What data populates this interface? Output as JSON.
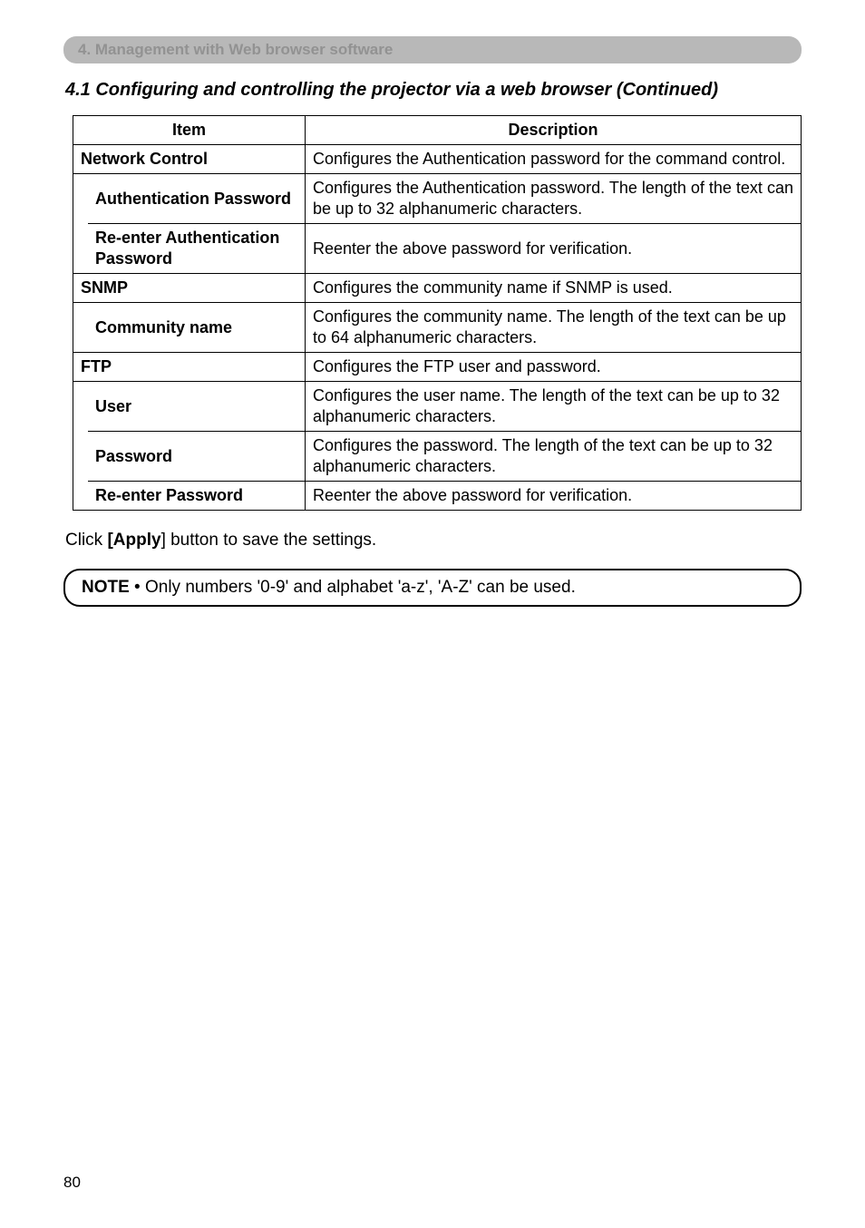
{
  "section_bar": "4. Management with Web browser software",
  "heading": "4.1 Configuring and controlling the projector via a web browser (Continued)",
  "table": {
    "header_item": "Item",
    "header_desc": "Description",
    "groups": [
      {
        "name": "Network Control",
        "desc": "Configures the Authentication password for the command control.",
        "subs": [
          {
            "name": "Authentication Password",
            "desc": "Configures the Authentication password. The length of the text can be up to 32 alphanumeric characters."
          },
          {
            "name": "Re-enter Authentication Password",
            "desc": "Reenter the above password for verification."
          }
        ]
      },
      {
        "name": "SNMP",
        "desc": "Configures the community name if SNMP is used.",
        "subs": [
          {
            "name": "Community name",
            "desc": "Configures the community name. The length of the text can be up to 64 alphanumeric characters."
          }
        ]
      },
      {
        "name": "FTP",
        "desc": "Configures the FTP user and password.",
        "subs": [
          {
            "name": "User",
            "desc": "Configures the user name. The length of the text can be up to 32 alphanumeric characters."
          },
          {
            "name": "Password",
            "desc": "Configures the password. The length of the text can be up to 32 alphanumeric characters."
          },
          {
            "name": "Re-enter Password",
            "desc": "Reenter the above password for verification."
          }
        ]
      }
    ]
  },
  "body_text_pre": "Click ",
  "body_text_bold": "[Apply",
  "body_text_post": "] button to save the settings.",
  "note_label": "NOTE",
  "note_text": " • Only numbers '0-9' and alphabet 'a-z', 'A-Z' can be used.",
  "page_number": "80"
}
